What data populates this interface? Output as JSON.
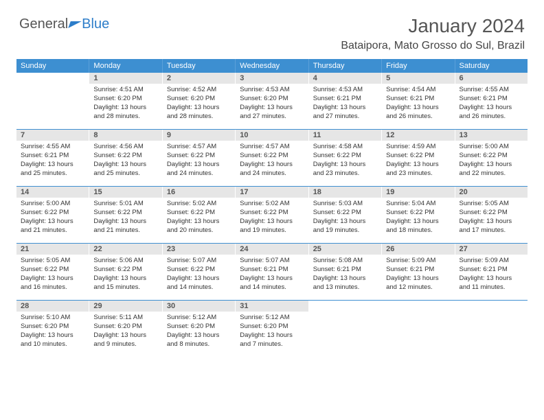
{
  "logo": {
    "part1": "General",
    "part2": "Blue"
  },
  "header": {
    "title": "January 2024",
    "location": "Bataipora, Mato Grosso do Sul, Brazil"
  },
  "colors": {
    "header_bg": "#3d8fd1",
    "header_text": "#ffffff",
    "daynum_bg": "#e6e6e6",
    "row_border": "#3d8fd1"
  },
  "dayheads": [
    "Sunday",
    "Monday",
    "Tuesday",
    "Wednesday",
    "Thursday",
    "Friday",
    "Saturday"
  ],
  "weeks": [
    [
      {
        "n": "",
        "sr": "",
        "ss": "",
        "dl1": "",
        "dl2": ""
      },
      {
        "n": "1",
        "sr": "Sunrise: 4:51 AM",
        "ss": "Sunset: 6:20 PM",
        "dl1": "Daylight: 13 hours",
        "dl2": "and 28 minutes."
      },
      {
        "n": "2",
        "sr": "Sunrise: 4:52 AM",
        "ss": "Sunset: 6:20 PM",
        "dl1": "Daylight: 13 hours",
        "dl2": "and 28 minutes."
      },
      {
        "n": "3",
        "sr": "Sunrise: 4:53 AM",
        "ss": "Sunset: 6:20 PM",
        "dl1": "Daylight: 13 hours",
        "dl2": "and 27 minutes."
      },
      {
        "n": "4",
        "sr": "Sunrise: 4:53 AM",
        "ss": "Sunset: 6:21 PM",
        "dl1": "Daylight: 13 hours",
        "dl2": "and 27 minutes."
      },
      {
        "n": "5",
        "sr": "Sunrise: 4:54 AM",
        "ss": "Sunset: 6:21 PM",
        "dl1": "Daylight: 13 hours",
        "dl2": "and 26 minutes."
      },
      {
        "n": "6",
        "sr": "Sunrise: 4:55 AM",
        "ss": "Sunset: 6:21 PM",
        "dl1": "Daylight: 13 hours",
        "dl2": "and 26 minutes."
      }
    ],
    [
      {
        "n": "7",
        "sr": "Sunrise: 4:55 AM",
        "ss": "Sunset: 6:21 PM",
        "dl1": "Daylight: 13 hours",
        "dl2": "and 25 minutes."
      },
      {
        "n": "8",
        "sr": "Sunrise: 4:56 AM",
        "ss": "Sunset: 6:22 PM",
        "dl1": "Daylight: 13 hours",
        "dl2": "and 25 minutes."
      },
      {
        "n": "9",
        "sr": "Sunrise: 4:57 AM",
        "ss": "Sunset: 6:22 PM",
        "dl1": "Daylight: 13 hours",
        "dl2": "and 24 minutes."
      },
      {
        "n": "10",
        "sr": "Sunrise: 4:57 AM",
        "ss": "Sunset: 6:22 PM",
        "dl1": "Daylight: 13 hours",
        "dl2": "and 24 minutes."
      },
      {
        "n": "11",
        "sr": "Sunrise: 4:58 AM",
        "ss": "Sunset: 6:22 PM",
        "dl1": "Daylight: 13 hours",
        "dl2": "and 23 minutes."
      },
      {
        "n": "12",
        "sr": "Sunrise: 4:59 AM",
        "ss": "Sunset: 6:22 PM",
        "dl1": "Daylight: 13 hours",
        "dl2": "and 23 minutes."
      },
      {
        "n": "13",
        "sr": "Sunrise: 5:00 AM",
        "ss": "Sunset: 6:22 PM",
        "dl1": "Daylight: 13 hours",
        "dl2": "and 22 minutes."
      }
    ],
    [
      {
        "n": "14",
        "sr": "Sunrise: 5:00 AM",
        "ss": "Sunset: 6:22 PM",
        "dl1": "Daylight: 13 hours",
        "dl2": "and 21 minutes."
      },
      {
        "n": "15",
        "sr": "Sunrise: 5:01 AM",
        "ss": "Sunset: 6:22 PM",
        "dl1": "Daylight: 13 hours",
        "dl2": "and 21 minutes."
      },
      {
        "n": "16",
        "sr": "Sunrise: 5:02 AM",
        "ss": "Sunset: 6:22 PM",
        "dl1": "Daylight: 13 hours",
        "dl2": "and 20 minutes."
      },
      {
        "n": "17",
        "sr": "Sunrise: 5:02 AM",
        "ss": "Sunset: 6:22 PM",
        "dl1": "Daylight: 13 hours",
        "dl2": "and 19 minutes."
      },
      {
        "n": "18",
        "sr": "Sunrise: 5:03 AM",
        "ss": "Sunset: 6:22 PM",
        "dl1": "Daylight: 13 hours",
        "dl2": "and 19 minutes."
      },
      {
        "n": "19",
        "sr": "Sunrise: 5:04 AM",
        "ss": "Sunset: 6:22 PM",
        "dl1": "Daylight: 13 hours",
        "dl2": "and 18 minutes."
      },
      {
        "n": "20",
        "sr": "Sunrise: 5:05 AM",
        "ss": "Sunset: 6:22 PM",
        "dl1": "Daylight: 13 hours",
        "dl2": "and 17 minutes."
      }
    ],
    [
      {
        "n": "21",
        "sr": "Sunrise: 5:05 AM",
        "ss": "Sunset: 6:22 PM",
        "dl1": "Daylight: 13 hours",
        "dl2": "and 16 minutes."
      },
      {
        "n": "22",
        "sr": "Sunrise: 5:06 AM",
        "ss": "Sunset: 6:22 PM",
        "dl1": "Daylight: 13 hours",
        "dl2": "and 15 minutes."
      },
      {
        "n": "23",
        "sr": "Sunrise: 5:07 AM",
        "ss": "Sunset: 6:22 PM",
        "dl1": "Daylight: 13 hours",
        "dl2": "and 14 minutes."
      },
      {
        "n": "24",
        "sr": "Sunrise: 5:07 AM",
        "ss": "Sunset: 6:21 PM",
        "dl1": "Daylight: 13 hours",
        "dl2": "and 14 minutes."
      },
      {
        "n": "25",
        "sr": "Sunrise: 5:08 AM",
        "ss": "Sunset: 6:21 PM",
        "dl1": "Daylight: 13 hours",
        "dl2": "and 13 minutes."
      },
      {
        "n": "26",
        "sr": "Sunrise: 5:09 AM",
        "ss": "Sunset: 6:21 PM",
        "dl1": "Daylight: 13 hours",
        "dl2": "and 12 minutes."
      },
      {
        "n": "27",
        "sr": "Sunrise: 5:09 AM",
        "ss": "Sunset: 6:21 PM",
        "dl1": "Daylight: 13 hours",
        "dl2": "and 11 minutes."
      }
    ],
    [
      {
        "n": "28",
        "sr": "Sunrise: 5:10 AM",
        "ss": "Sunset: 6:20 PM",
        "dl1": "Daylight: 13 hours",
        "dl2": "and 10 minutes."
      },
      {
        "n": "29",
        "sr": "Sunrise: 5:11 AM",
        "ss": "Sunset: 6:20 PM",
        "dl1": "Daylight: 13 hours",
        "dl2": "and 9 minutes."
      },
      {
        "n": "30",
        "sr": "Sunrise: 5:12 AM",
        "ss": "Sunset: 6:20 PM",
        "dl1": "Daylight: 13 hours",
        "dl2": "and 8 minutes."
      },
      {
        "n": "31",
        "sr": "Sunrise: 5:12 AM",
        "ss": "Sunset: 6:20 PM",
        "dl1": "Daylight: 13 hours",
        "dl2": "and 7 minutes."
      },
      {
        "n": "",
        "sr": "",
        "ss": "",
        "dl1": "",
        "dl2": ""
      },
      {
        "n": "",
        "sr": "",
        "ss": "",
        "dl1": "",
        "dl2": ""
      },
      {
        "n": "",
        "sr": "",
        "ss": "",
        "dl1": "",
        "dl2": ""
      }
    ]
  ]
}
